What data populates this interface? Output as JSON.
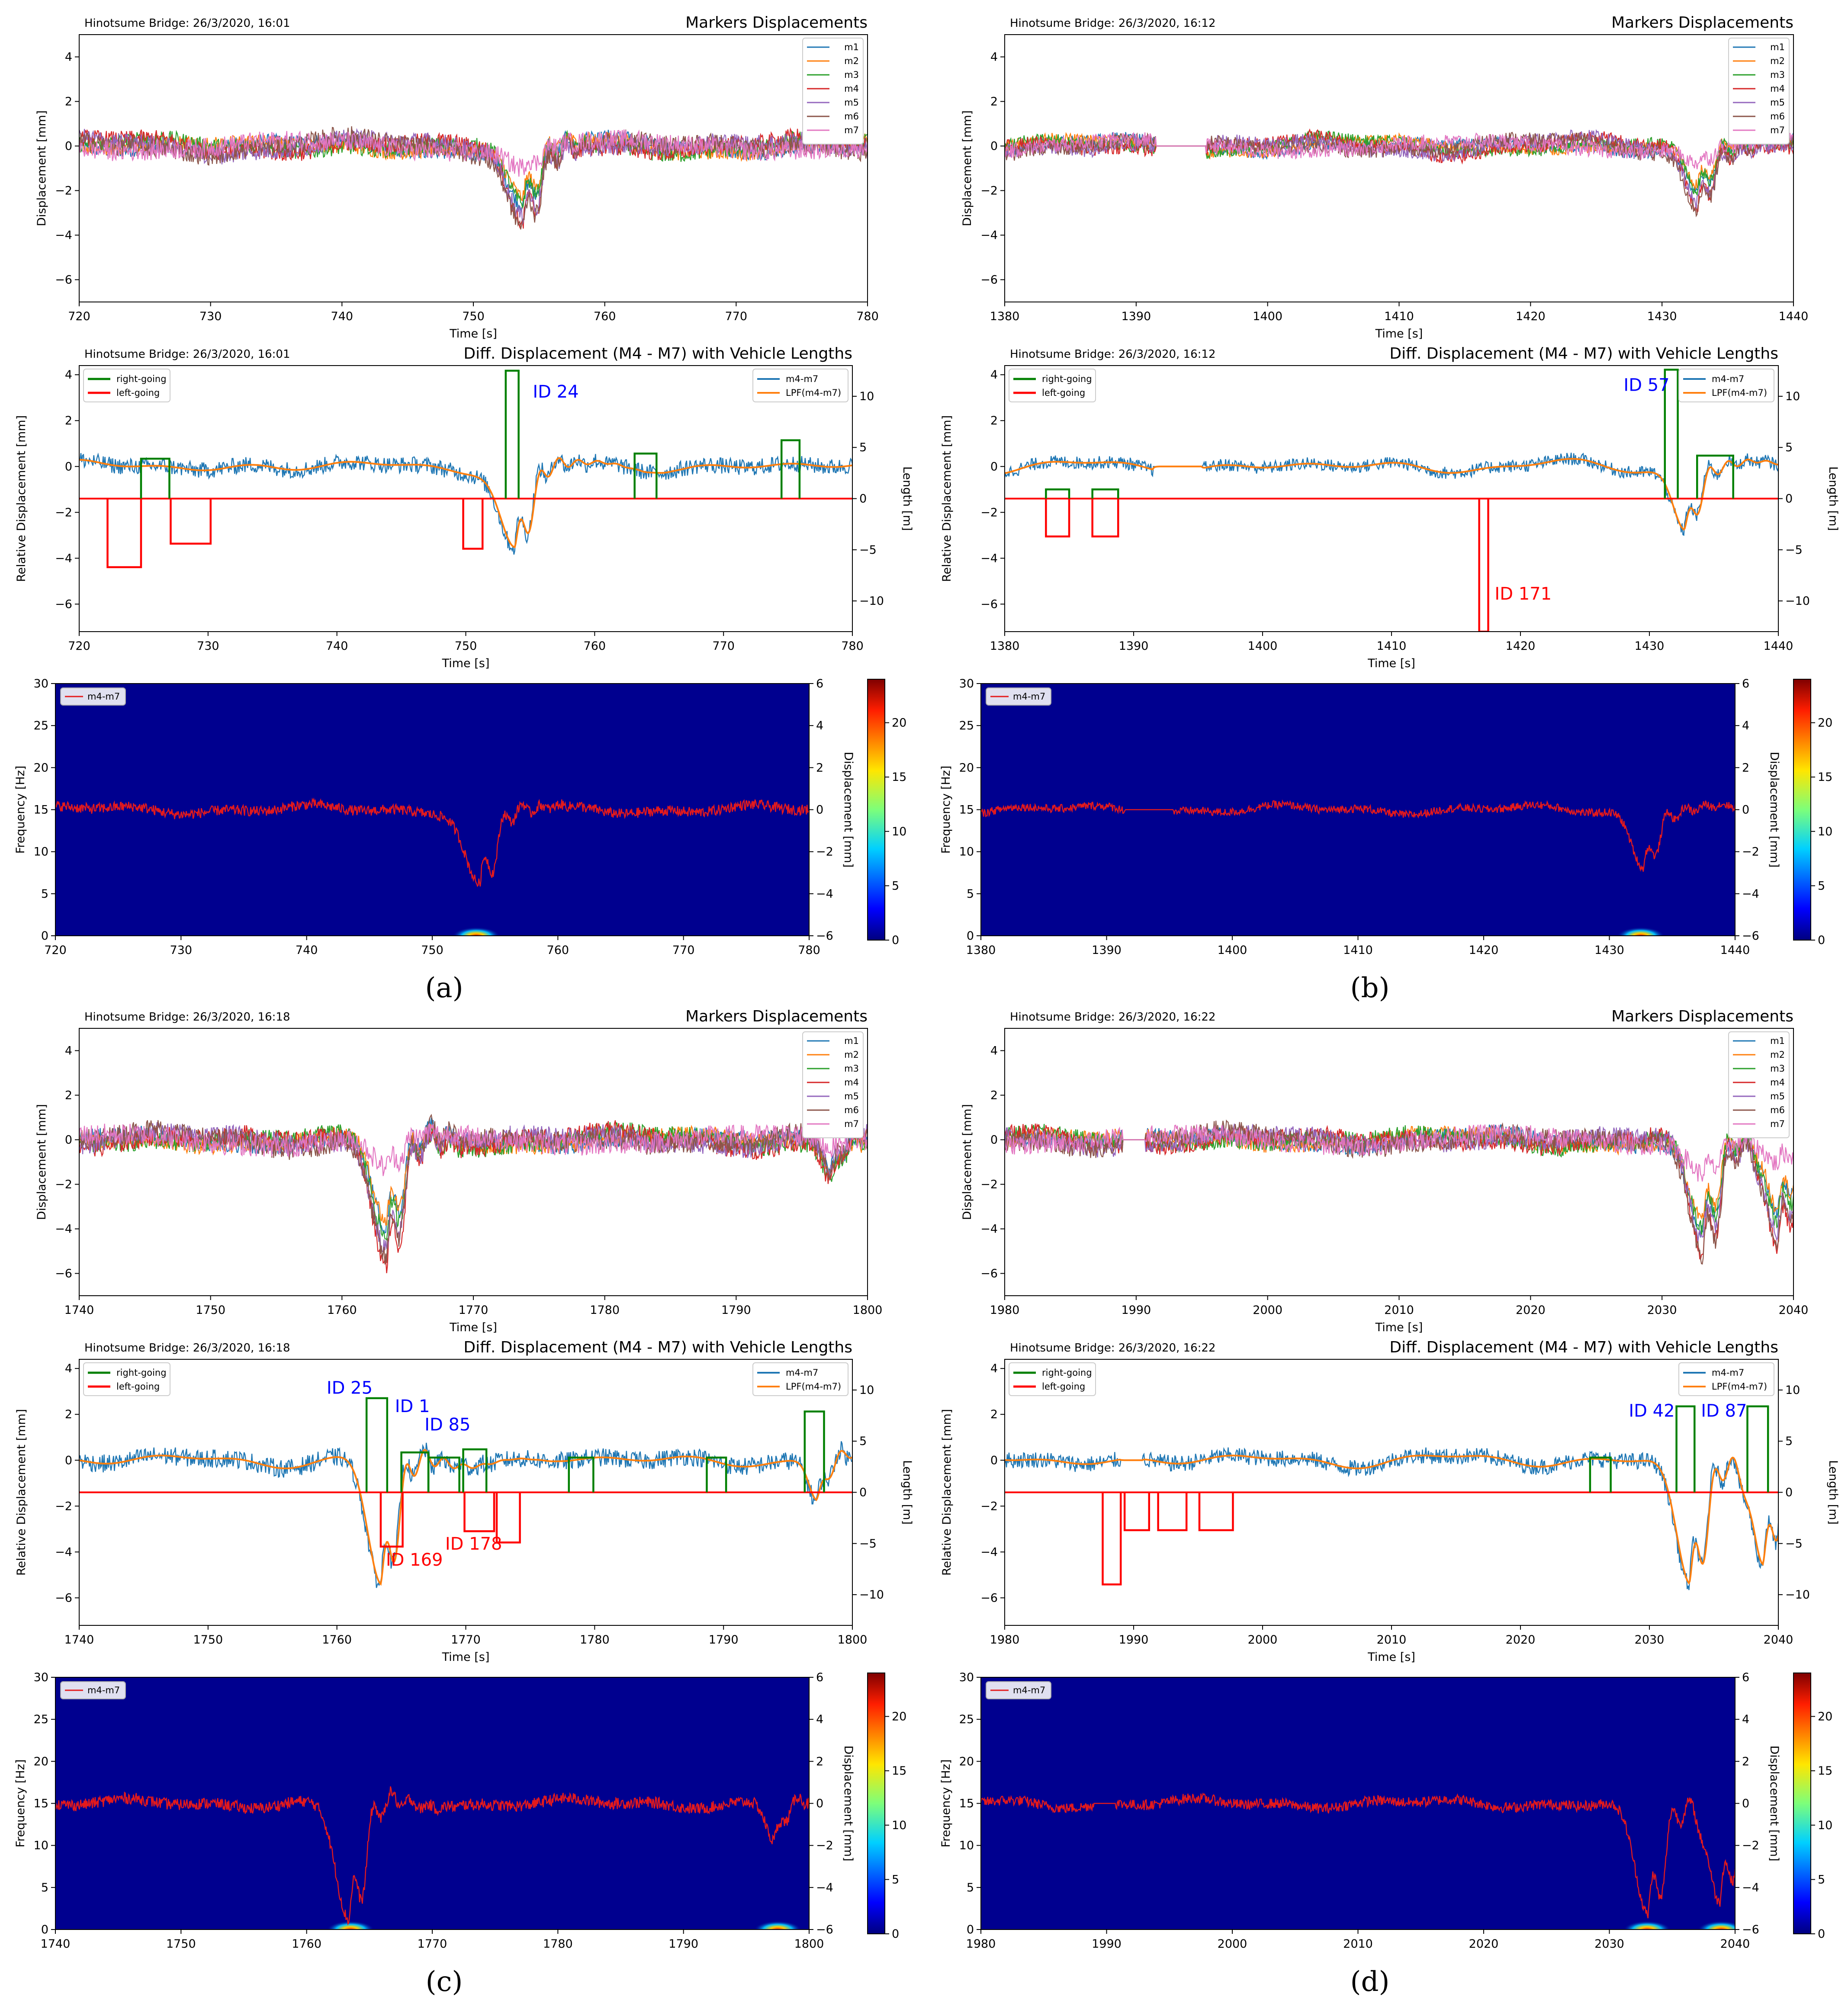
{
  "colors": {
    "m1": "#1f77b4",
    "m2": "#ff7f0e",
    "m3": "#2ca02c",
    "m4": "#d62728",
    "m5": "#9467bd",
    "m6": "#8c564b",
    "m7": "#e377c2",
    "diff": "#1f77b4",
    "lpf": "#ff7f0e",
    "right_going": "#008000",
    "left_going": "#ff0000",
    "spec_bg": "#00008f",
    "spec_line": "#e41a1c",
    "id_right": "#0000ff",
    "id_left": "#ff0000"
  },
  "colorbar": {
    "ticks": [
      "0",
      "5",
      "10",
      "15",
      "20"
    ],
    "range": [
      0,
      24
    ]
  },
  "legend": {
    "markers": [
      "m1",
      "m2",
      "m3",
      "m4",
      "m5",
      "m6",
      "m7"
    ],
    "lengths_left": [
      "right-going",
      "left-going"
    ],
    "lengths_right": [
      "m4-m7",
      "LPF(m4-m7)"
    ],
    "spectrogram": [
      "m4-m7"
    ]
  },
  "labels": {
    "markers_title": "Markers Displacements",
    "diff_title": "Diff. Displacement (M4 - M7) with Vehicle Lengths",
    "time": "Time [s]",
    "displacement": "Displacement [mm]",
    "relative_displacement": "Relative Displacement [mm]",
    "length": "Length [m]",
    "frequency": "Frequency [Hz]",
    "displacement_right": "Displacement [mm]"
  },
  "panels": [
    {
      "label": "(a)",
      "subtitle": "Hinotsume Bridge: 26/3/2020, 16:01",
      "xlim": [
        720,
        780
      ],
      "x_ticks": [
        "720",
        "730",
        "740",
        "750",
        "760",
        "770",
        "780"
      ],
      "markers_ylim": [
        -7,
        5
      ],
      "markers_yticks": [
        "−6",
        "−4",
        "−2",
        "0",
        "2",
        "4"
      ],
      "diff_ylim": [
        -7.2,
        4.4
      ],
      "diff_yticks": [
        "−6",
        "−4",
        "−2",
        "0",
        "2",
        "4"
      ],
      "length_ylim": [
        -13,
        13
      ],
      "length_yticks": [
        "−10",
        "−5",
        "0",
        "5",
        "10"
      ],
      "spec_ylim": [
        0,
        30
      ],
      "spec_yticks": [
        "0",
        "5",
        "10",
        "15",
        "20",
        "25",
        "30"
      ],
      "spec_right_ylim": [
        -6,
        6
      ],
      "spec_right_yticks": [
        "−6",
        "−4",
        "−2",
        "0",
        "2",
        "4",
        "6"
      ],
      "noise_amp": 0.45,
      "dips": [
        {
          "t": 753.8,
          "depth": 3.6,
          "width": 1.6
        }
      ],
      "vehicles": [
        {
          "dir": "right",
          "start": 724.8,
          "end": 727.0,
          "len": 3.9
        },
        {
          "dir": "left",
          "start": 722.2,
          "end": 724.8,
          "len": -6.7
        },
        {
          "dir": "left",
          "start": 727.1,
          "end": 730.2,
          "len": -4.4
        },
        {
          "dir": "left",
          "start": 749.8,
          "end": 751.3,
          "len": -4.9
        },
        {
          "dir": "right",
          "start": 753.1,
          "end": 754.1,
          "len": 12.5
        },
        {
          "dir": "right",
          "start": 763.1,
          "end": 764.8,
          "len": 4.4
        },
        {
          "dir": "right",
          "start": 774.5,
          "end": 775.9,
          "len": 5.7
        }
      ],
      "ids": [
        {
          "text": "ID 24",
          "dir": "right",
          "t": 755.2,
          "y": 3.0
        }
      ],
      "hotspots": [
        {
          "t": 753.5
        }
      ]
    },
    {
      "label": "(b)",
      "subtitle": "Hinotsume Bridge: 26/3/2020, 16:12",
      "xlim": [
        1380,
        1440
      ],
      "x_ticks": [
        "1380",
        "1390",
        "1400",
        "1410",
        "1420",
        "1430",
        "1440"
      ],
      "markers_ylim": [
        -7,
        5
      ],
      "markers_yticks": [
        "−6",
        "−4",
        "−2",
        "0",
        "2",
        "4"
      ],
      "diff_ylim": [
        -7.2,
        4.4
      ],
      "diff_yticks": [
        "−6",
        "−4",
        "−2",
        "0",
        "2",
        "4"
      ],
      "length_ylim": [
        -13,
        13
      ],
      "length_yticks": [
        "−10",
        "−5",
        "0",
        "5",
        "10"
      ],
      "spec_ylim": [
        0,
        30
      ],
      "spec_yticks": [
        "0",
        "5",
        "10",
        "15",
        "20",
        "25",
        "30"
      ],
      "spec_right_ylim": [
        -6,
        6
      ],
      "spec_right_yticks": [
        "−6",
        "−4",
        "−2",
        "0",
        "2",
        "4",
        "6"
      ],
      "noise_amp": 0.35,
      "flat": [
        1391.5,
        1395.3
      ],
      "dips": [
        {
          "t": 1432.7,
          "depth": 2.7,
          "width": 1.3
        }
      ],
      "vehicles": [
        {
          "dir": "right",
          "start": 1383.2,
          "end": 1385.0,
          "len": 0.9
        },
        {
          "dir": "left",
          "start": 1383.2,
          "end": 1385.0,
          "len": -3.7
        },
        {
          "dir": "right",
          "start": 1386.8,
          "end": 1388.8,
          "len": 0.9
        },
        {
          "dir": "left",
          "start": 1386.8,
          "end": 1388.8,
          "len": -3.7
        },
        {
          "dir": "left",
          "start": 1416.8,
          "end": 1417.5,
          "len": -13
        },
        {
          "dir": "right",
          "start": 1431.2,
          "end": 1432.2,
          "len": 12.6
        },
        {
          "dir": "right",
          "start": 1433.7,
          "end": 1436.5,
          "len": 4.2
        }
      ],
      "ids": [
        {
          "text": "ID 57",
          "dir": "right",
          "t": 1428.0,
          "y": 3.3
        },
        {
          "text": "ID 171",
          "dir": "left",
          "t": 1418.0,
          "y": -5.8
        }
      ],
      "hotspots": [
        {
          "t": 1432.5
        }
      ]
    },
    {
      "label": "(c)",
      "subtitle": "Hinotsume Bridge: 26/3/2020, 16:18",
      "xlim": [
        1740,
        1800
      ],
      "x_ticks": [
        "1740",
        "1750",
        "1760",
        "1770",
        "1780",
        "1790",
        "1800"
      ],
      "markers_ylim": [
        -7,
        5
      ],
      "markers_yticks": [
        "−6",
        "−4",
        "−2",
        "0",
        "2",
        "4"
      ],
      "diff_ylim": [
        -7.2,
        4.4
      ],
      "diff_yticks": [
        "−6",
        "−4",
        "−2",
        "0",
        "2",
        "4"
      ],
      "length_ylim": [
        -13,
        13
      ],
      "length_yticks": [
        "−10",
        "−5",
        "0",
        "5",
        "10"
      ],
      "spec_ylim": [
        0,
        30
      ],
      "spec_yticks": [
        "0",
        "5",
        "10",
        "15",
        "20",
        "25",
        "30"
      ],
      "spec_right_ylim": [
        -6,
        6
      ],
      "spec_right_yticks": [
        "−6",
        "−4",
        "−2",
        "0",
        "2",
        "4",
        "6"
      ],
      "noise_amp": 0.5,
      "dips": [
        {
          "t": 1763.4,
          "depth": 5.6,
          "width": 1.5
        },
        {
          "t": 1797.2,
          "depth": 1.8,
          "width": 0.9
        }
      ],
      "vehicles": [
        {
          "dir": "right",
          "start": 1762.3,
          "end": 1763.9,
          "len": 9.2
        },
        {
          "dir": "left",
          "start": 1763.4,
          "end": 1765.1,
          "len": -5.3
        },
        {
          "dir": "right",
          "start": 1765.0,
          "end": 1767.1,
          "len": 3.9
        },
        {
          "dir": "right",
          "start": 1767.1,
          "end": 1769.5,
          "len": 3.4
        },
        {
          "dir": "right",
          "start": 1769.8,
          "end": 1771.6,
          "len": 4.2
        },
        {
          "dir": "left",
          "start": 1769.9,
          "end": 1772.2,
          "len": -3.8
        },
        {
          "dir": "left",
          "start": 1772.4,
          "end": 1774.2,
          "len": -4.9
        },
        {
          "dir": "right",
          "start": 1778.0,
          "end": 1779.9,
          "len": 3.4
        },
        {
          "dir": "right",
          "start": 1788.7,
          "end": 1790.2,
          "len": 3.4
        },
        {
          "dir": "right",
          "start": 1796.3,
          "end": 1797.8,
          "len": 7.9
        }
      ],
      "ids": [
        {
          "text": "ID 25",
          "dir": "right",
          "t": 1759.2,
          "y": 2.9
        },
        {
          "text": "ID 1",
          "dir": "right",
          "t": 1764.5,
          "y": 2.1
        },
        {
          "text": "ID 85",
          "dir": "right",
          "t": 1766.8,
          "y": 1.3
        },
        {
          "text": "ID 178",
          "dir": "left",
          "t": 1768.4,
          "y": -3.9
        },
        {
          "text": "ID 169",
          "dir": "left",
          "t": 1763.8,
          "y": -4.6
        }
      ],
      "hotspots": [
        {
          "t": 1763.5
        },
        {
          "t": 1797.5
        }
      ]
    },
    {
      "label": "(d)",
      "subtitle": "Hinotsume Bridge: 26/3/2020, 16:22",
      "xlim": [
        1980,
        2040
      ],
      "x_ticks": [
        "1980",
        "1990",
        "2000",
        "2010",
        "2020",
        "2030",
        "2040"
      ],
      "markers_ylim": [
        -7,
        5
      ],
      "markers_yticks": [
        "−6",
        "−4",
        "−2",
        "0",
        "2",
        "4"
      ],
      "diff_ylim": [
        -7.2,
        4.4
      ],
      "diff_yticks": [
        "−6",
        "−4",
        "−2",
        "0",
        "2",
        "4"
      ],
      "length_ylim": [
        -13,
        13
      ],
      "length_yticks": [
        "−10",
        "−5",
        "0",
        "5",
        "10"
      ],
      "spec_ylim": [
        0,
        30
      ],
      "spec_yticks": [
        "0",
        "5",
        "10",
        "15",
        "20",
        "25",
        "30"
      ],
      "spec_right_ylim": [
        -6,
        6
      ],
      "spec_right_yticks": [
        "−6",
        "−4",
        "−2",
        "0",
        "2",
        "4",
        "6"
      ],
      "noise_amp": 0.45,
      "flat": [
        1989.0,
        1990.7
      ],
      "dips": [
        {
          "t": 2033.1,
          "depth": 5.5,
          "width": 1.5
        },
        {
          "t": 2038.8,
          "depth": 4.6,
          "width": 1.4
        }
      ],
      "vehicles": [
        {
          "dir": "left",
          "start": 1987.6,
          "end": 1989.0,
          "len": -9.0
        },
        {
          "dir": "left",
          "start": 1989.3,
          "end": 1991.2,
          "len": -3.7
        },
        {
          "dir": "left",
          "start": 1991.9,
          "end": 1994.1,
          "len": -3.7
        },
        {
          "dir": "left",
          "start": 1995.1,
          "end": 1997.7,
          "len": -3.7
        },
        {
          "dir": "right",
          "start": 2025.4,
          "end": 2027.0,
          "len": 3.4
        },
        {
          "dir": "right",
          "start": 2032.1,
          "end": 2033.5,
          "len": 8.4
        },
        {
          "dir": "right",
          "start": 2037.6,
          "end": 2039.2,
          "len": 8.4
        }
      ],
      "ids": [
        {
          "text": "ID 42",
          "dir": "right",
          "t": 2028.4,
          "y": 1.9
        },
        {
          "text": "ID 87",
          "dir": "right",
          "t": 2034.0,
          "y": 1.9
        }
      ],
      "hotspots": [
        {
          "t": 2033.0
        },
        {
          "t": 2038.9
        }
      ]
    }
  ]
}
